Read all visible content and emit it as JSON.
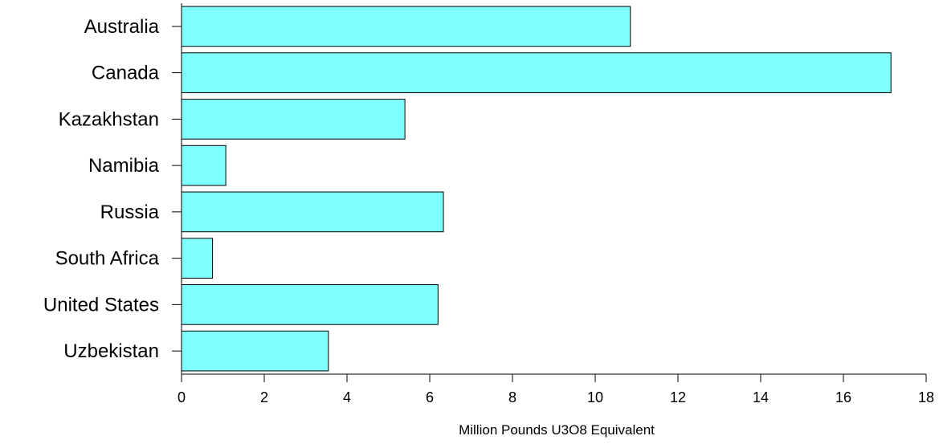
{
  "chart_data": {
    "type": "bar",
    "orientation": "horizontal",
    "categories": [
      "Australia",
      "Canada",
      "Kazakhstan",
      "Namibia",
      "Russia",
      "South Africa",
      "United States",
      "Uzbekistan"
    ],
    "values": [
      10.85,
      17.15,
      5.4,
      1.07,
      6.33,
      0.75,
      6.2,
      3.55
    ],
    "title": "",
    "xlabel": "Million Pounds U3O8 Equivalent",
    "ylabel": "",
    "xlim": [
      0,
      18
    ],
    "xticks": [
      0,
      2,
      4,
      6,
      8,
      10,
      12,
      14,
      16,
      18
    ],
    "grid": false,
    "bar_color": "#80ffff",
    "bar_edge_color": "#000000"
  }
}
